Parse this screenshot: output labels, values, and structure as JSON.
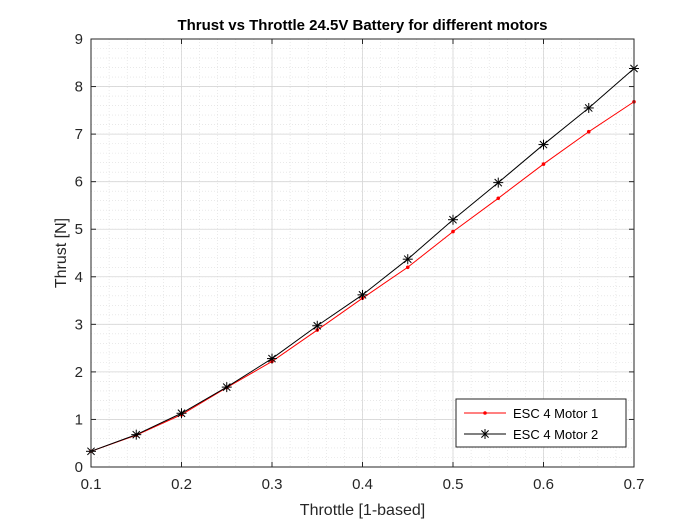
{
  "chart_data": {
    "type": "line",
    "title": "Thrust vs Throttle 24.5V Battery for different motors",
    "xlabel": "Throttle [1-based]",
    "ylabel": "Thrust [N]",
    "xlim": [
      0.1,
      0.7
    ],
    "ylim": [
      0,
      9
    ],
    "xticks": [
      0.1,
      0.2,
      0.3,
      0.4,
      0.5,
      0.6,
      0.7
    ],
    "yticks": [
      0,
      1,
      2,
      3,
      4,
      5,
      6,
      7,
      8,
      9
    ],
    "grid": true,
    "minor_grid": true,
    "legend_position": "bottom-right",
    "x": [
      0.1,
      0.15,
      0.2,
      0.25,
      0.3,
      0.35,
      0.4,
      0.45,
      0.5,
      0.55,
      0.6,
      0.65,
      0.7
    ],
    "series": [
      {
        "name": "ESC 4 Motor 1",
        "color": "#ff0000",
        "marker": "dot",
        "values": [
          0.33,
          0.67,
          1.1,
          1.67,
          2.22,
          2.88,
          3.55,
          4.2,
          4.95,
          5.65,
          6.37,
          7.05,
          7.68
        ]
      },
      {
        "name": "ESC 4 Motor 2",
        "color": "#000000",
        "marker": "asterisk",
        "values": [
          0.33,
          0.68,
          1.13,
          1.68,
          2.28,
          2.97,
          3.62,
          4.37,
          5.2,
          5.98,
          6.78,
          7.55,
          8.38
        ]
      }
    ]
  }
}
